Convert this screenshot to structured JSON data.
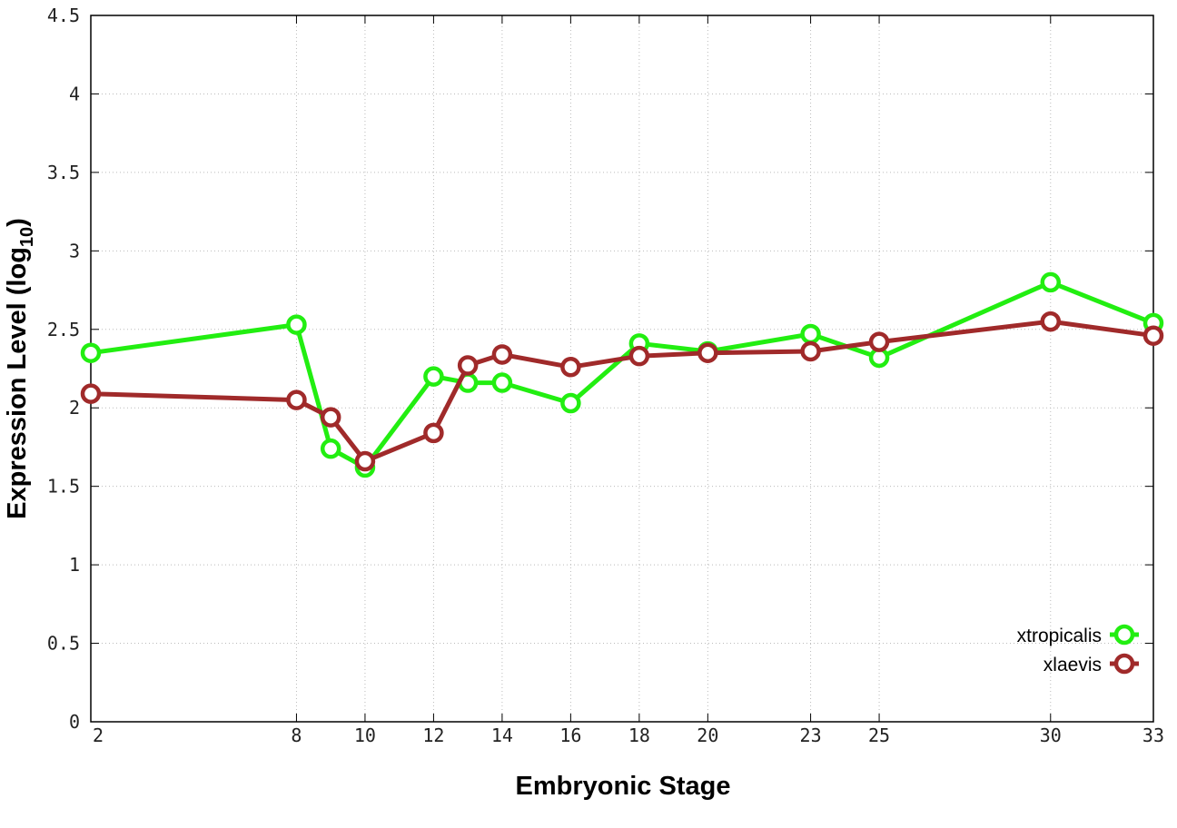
{
  "chart_data": {
    "type": "line",
    "xlabel": "Embryonic Stage",
    "ylabel_main": "Expression Level (log",
    "ylabel_sub": "10",
    "ylabel_close": ")",
    "x": [
      2,
      8,
      9,
      10,
      12,
      13,
      14,
      16,
      18,
      20,
      23,
      25,
      30,
      33
    ],
    "xticks": [
      2,
      8,
      10,
      12,
      14,
      16,
      18,
      20,
      23,
      25,
      30,
      33
    ],
    "xlim": [
      2,
      33
    ],
    "yticks": [
      0,
      0.5,
      1,
      1.5,
      2,
      2.5,
      3,
      3.5,
      4,
      4.5
    ],
    "ylim": [
      0,
      4.5
    ],
    "grid": true,
    "legend_position": "bottom-right",
    "series": [
      {
        "name": "xtropicalis",
        "color": "#22ee11",
        "values": [
          2.35,
          2.53,
          1.74,
          1.62,
          2.2,
          2.16,
          2.16,
          2.03,
          2.41,
          2.36,
          2.47,
          2.32,
          2.8,
          2.54
        ]
      },
      {
        "name": "xlaevis",
        "color": "#a02a2a",
        "values": [
          2.09,
          2.05,
          1.94,
          1.66,
          1.84,
          2.27,
          2.34,
          2.26,
          2.33,
          2.35,
          2.36,
          2.42,
          2.55,
          2.46
        ]
      }
    ]
  }
}
